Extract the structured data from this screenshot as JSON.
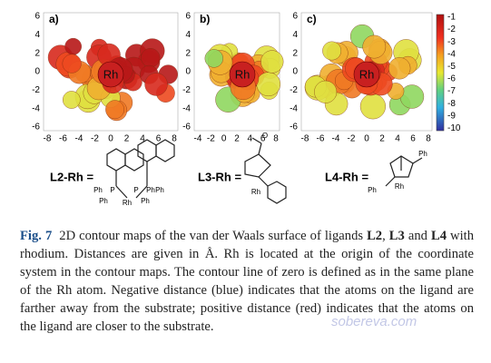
{
  "panels": [
    {
      "label": "a)",
      "center_label": "Rh",
      "x_ticks": [
        "-8",
        "-6",
        "-4",
        "-2",
        "0",
        "2",
        "4",
        "6",
        "8"
      ],
      "y_ticks": [
        "6",
        "4",
        "2",
        "0",
        "-2",
        "-4",
        "-6"
      ]
    },
    {
      "label": "b)",
      "center_label": "Rh",
      "x_ticks": [
        "-4",
        "-2",
        "0",
        "2",
        "4",
        "6",
        "8"
      ],
      "y_ticks": [
        "6",
        "4",
        "2",
        "0",
        "-2",
        "-4",
        "-6"
      ]
    },
    {
      "label": "c)",
      "center_label": "Rh",
      "x_ticks": [
        "-8",
        "-6",
        "-4",
        "-2",
        "0",
        "2",
        "4",
        "6",
        "8"
      ],
      "y_ticks": [
        "6",
        "4",
        "2",
        "0",
        "-2",
        "-4",
        "-6"
      ]
    }
  ],
  "colorbar": {
    "ticks": [
      "-1",
      "-2",
      "-3",
      "-4",
      "-5",
      "-6",
      "-7",
      "-8",
      "-9",
      "-10"
    ]
  },
  "structures": [
    {
      "label": "L2-Rh =",
      "atoms": [
        "Ph",
        "P",
        "P",
        "Ph",
        "Ph",
        "Rh",
        "Ph",
        "Ph"
      ]
    },
    {
      "label": "L3-Rh =",
      "atoms": [
        "O",
        "Rh"
      ]
    },
    {
      "label": "L4-Rh =",
      "atoms": [
        "Ph",
        "Ph",
        "Rh"
      ]
    }
  ],
  "caption": {
    "label": "Fig. 7",
    "segments": [
      "2D contour maps of the van der Waals surface of ligands ",
      "L2",
      ", ",
      "L3",
      " and ",
      "L4",
      " with rhodium. Distances are given in Å. Rh is located at the origin of the coordinate system in the contour maps. The contour line of zero is defined as in the same plane of the Rh atom. Negative distance (blue) indicates that the atoms on the ligand are farther away from the substrate; positive distance (red) indicates that the atoms on the ligand are closer to the substrate."
    ]
  },
  "watermark": "sobereva.com"
}
